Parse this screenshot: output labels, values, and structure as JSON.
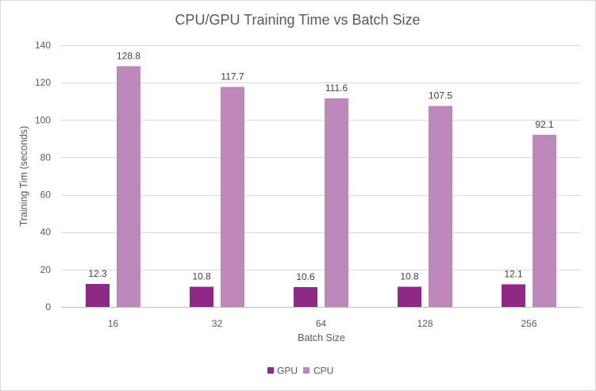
{
  "chart_data": {
    "type": "bar",
    "title": "CPU/GPU Training Time vs Batch Size",
    "xlabel": "Batch Size",
    "ylabel": "Training Tim (seconds)",
    "categories": [
      "16",
      "32",
      "64",
      "128",
      "256"
    ],
    "series": [
      {
        "name": "GPU",
        "color": "#8E2A86",
        "values": [
          12.3,
          10.8,
          10.6,
          10.8,
          12.1
        ]
      },
      {
        "name": "CPU",
        "color": "#BF88BB",
        "values": [
          128.8,
          117.7,
          111.6,
          107.5,
          92.1
        ]
      }
    ],
    "ylim": [
      0,
      140
    ],
    "yticks": [
      0,
      20,
      40,
      60,
      80,
      100,
      120,
      140
    ],
    "grid": true,
    "legend": "bottom",
    "data_labels": true,
    "colors": {
      "grid": "#D9D9D9",
      "axis": "#BFBFBF",
      "border": "#D9D9D9"
    }
  }
}
